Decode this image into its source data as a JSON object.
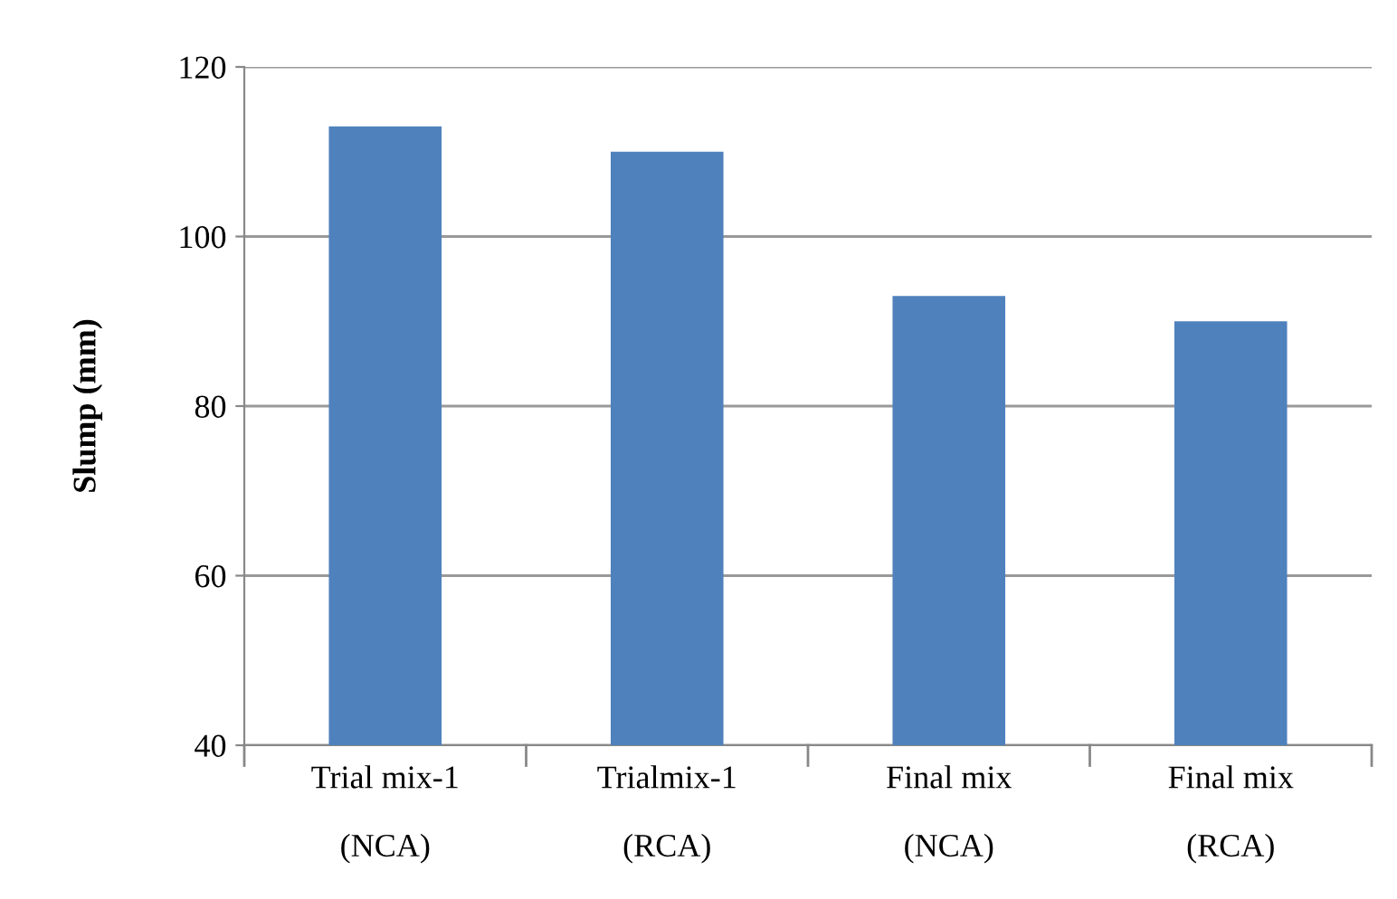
{
  "chart_data": {
    "type": "bar",
    "ylabel": "Slump (mm)",
    "categories": [
      "Trial mix-1\n\n(NCA)",
      "Trialmix-1\n\n(RCA)",
      "Final mix\n\n(NCA)",
      "Final mix\n\n(RCA)"
    ],
    "values": [
      113,
      110,
      93,
      90
    ],
    "color": "#4f81bd",
    "ylim": [
      40,
      120
    ],
    "yticks": [
      40,
      60,
      80,
      100,
      120
    ],
    "grid": "y"
  }
}
